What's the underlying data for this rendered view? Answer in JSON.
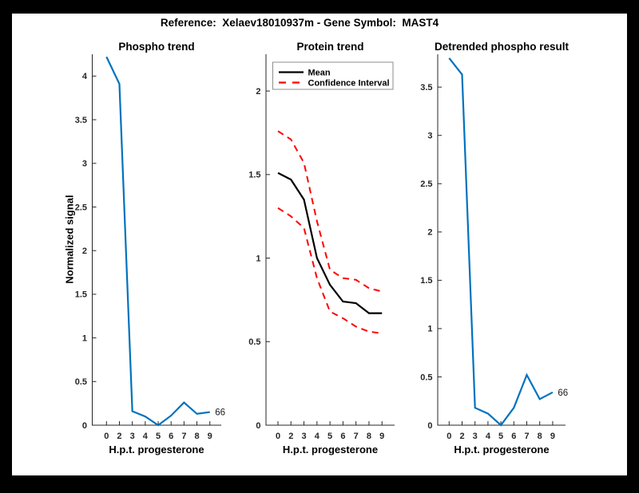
{
  "figure": {
    "suptitle": "Reference:  Xelaev18010937m - Gene Symbol:  MAST4",
    "frame_color": "#000000",
    "background": "#ffffff",
    "axis_color": "#262626",
    "text_color": "#000000",
    "blue": "#0072BD",
    "red": "#FF0000"
  },
  "chart_data": [
    {
      "type": "line",
      "title": "Phospho trend",
      "xlabel": "H.p.t. progesterone",
      "ylabel": "Normalized signal",
      "x": [
        0,
        2,
        3,
        4,
        5,
        6,
        7,
        8,
        9
      ],
      "x_tick_spacing": "even",
      "x_ticklabels": [
        "0",
        "2",
        "3",
        "4",
        "5",
        "6",
        "7",
        "8",
        "9"
      ],
      "y_ticks": [
        0,
        0.5,
        1,
        1.5,
        2,
        2.5,
        3,
        3.5,
        4
      ],
      "y_ticklabels": [
        "0",
        "0.5",
        "1",
        "1.5",
        "2",
        "2.5",
        "3",
        "3.5",
        "4"
      ],
      "ylim": [
        0,
        4.25
      ],
      "grid": false,
      "series": [
        {
          "name": "Phospho signal",
          "color": "#0072BD",
          "style": "solid",
          "width": 2.2,
          "values": [
            4.22,
            3.91,
            0.16,
            0.1,
            0,
            0.11,
            0.26,
            0.13,
            0.15
          ]
        }
      ],
      "annotation": "66",
      "legend": null
    },
    {
      "type": "line",
      "title": "Protein trend",
      "xlabel": "H.p.t. progesterone",
      "ylabel": "",
      "x": [
        0,
        2,
        3,
        4,
        5,
        6,
        7,
        8,
        9
      ],
      "x_tick_spacing": "even",
      "x_ticklabels": [
        "0",
        "2",
        "3",
        "4",
        "5",
        "6",
        "7",
        "8",
        "9"
      ],
      "y_ticks": [
        0,
        0.5,
        1,
        1.5,
        2
      ],
      "y_ticklabels": [
        "0",
        "0.5",
        "1",
        "1.5",
        "2"
      ],
      "ylim": [
        0,
        2.22
      ],
      "grid": false,
      "series": [
        {
          "name": "Mean",
          "color": "#000000",
          "style": "solid",
          "width": 2.2,
          "values": [
            1.51,
            1.47,
            1.35,
            1.0,
            0.84,
            0.74,
            0.73,
            0.67,
            0.67
          ]
        },
        {
          "name": "Confidence Interval (upper)",
          "color": "#FF0000",
          "style": "dashed",
          "width": 2,
          "values": [
            1.76,
            1.71,
            1.57,
            1.22,
            0.93,
            0.88,
            0.87,
            0.82,
            0.8
          ]
        },
        {
          "name": "Confidence Interval (lower)",
          "color": "#FF0000",
          "style": "dashed",
          "width": 2,
          "values": [
            1.3,
            1.25,
            1.18,
            0.88,
            0.68,
            0.64,
            0.59,
            0.56,
            0.55
          ]
        }
      ],
      "annotation": null,
      "legend": {
        "position": "top",
        "entries": [
          {
            "label": "Mean",
            "color": "#000000",
            "style": "solid"
          },
          {
            "label": "Confidence Interval",
            "color": "#FF0000",
            "style": "dashed"
          }
        ]
      }
    },
    {
      "type": "line",
      "title": "Detrended phospho result",
      "xlabel": "H.p.t. progesterone",
      "ylabel": "",
      "x": [
        0,
        2,
        3,
        4,
        5,
        6,
        7,
        8,
        9
      ],
      "x_tick_spacing": "even",
      "x_ticklabels": [
        "0",
        "2",
        "3",
        "4",
        "5",
        "6",
        "7",
        "8",
        "9"
      ],
      "y_ticks": [
        0,
        0.5,
        1,
        1.5,
        2,
        2.5,
        3,
        3.5
      ],
      "y_ticklabels": [
        "0",
        "0.5",
        "1",
        "1.5",
        "2",
        "2.5",
        "3",
        "3.5"
      ],
      "ylim": [
        0,
        3.84
      ],
      "grid": false,
      "series": [
        {
          "name": "Detrended phospho",
          "color": "#0072BD",
          "style": "solid",
          "width": 2.2,
          "values": [
            3.8,
            3.63,
            0.18,
            0.12,
            0,
            0.18,
            0.52,
            0.27,
            0.34
          ]
        }
      ],
      "annotation": "66",
      "legend": null
    }
  ]
}
